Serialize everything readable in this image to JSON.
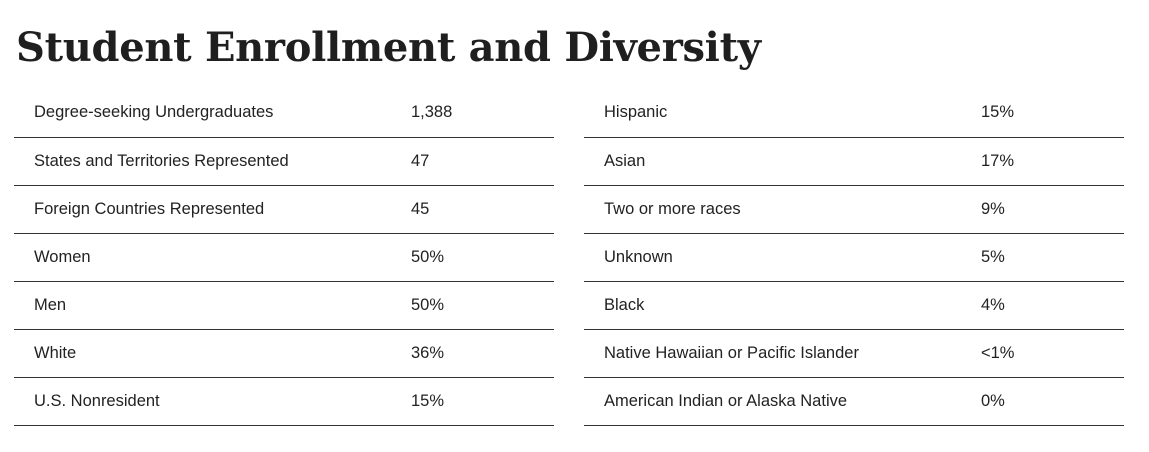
{
  "title": "Student Enrollment and Diversity",
  "enrollment": [
    {
      "label": "Degree-seeking Undergraduates",
      "value": "1,388"
    },
    {
      "label": "States and Territories Represented",
      "value": "47"
    },
    {
      "label": "Foreign Countries Represented",
      "value": "45"
    },
    {
      "label": "Women",
      "value": "50%"
    },
    {
      "label": "Men",
      "value": "50%"
    },
    {
      "label": "White",
      "value": "36%"
    },
    {
      "label": "U.S. Nonresident",
      "value": "15%"
    }
  ],
  "diversity": [
    {
      "label": "Hispanic",
      "value": "15%"
    },
    {
      "label": "Asian",
      "value": "17%"
    },
    {
      "label": "Two or more races",
      "value": "9%"
    },
    {
      "label": "Unknown",
      "value": "5%"
    },
    {
      "label": "Black",
      "value": "4%"
    },
    {
      "label": "Native Hawaiian or Pacific Islander",
      "value": "<1%"
    },
    {
      "label": "American Indian or Alaska Native",
      "value": "0%"
    }
  ]
}
